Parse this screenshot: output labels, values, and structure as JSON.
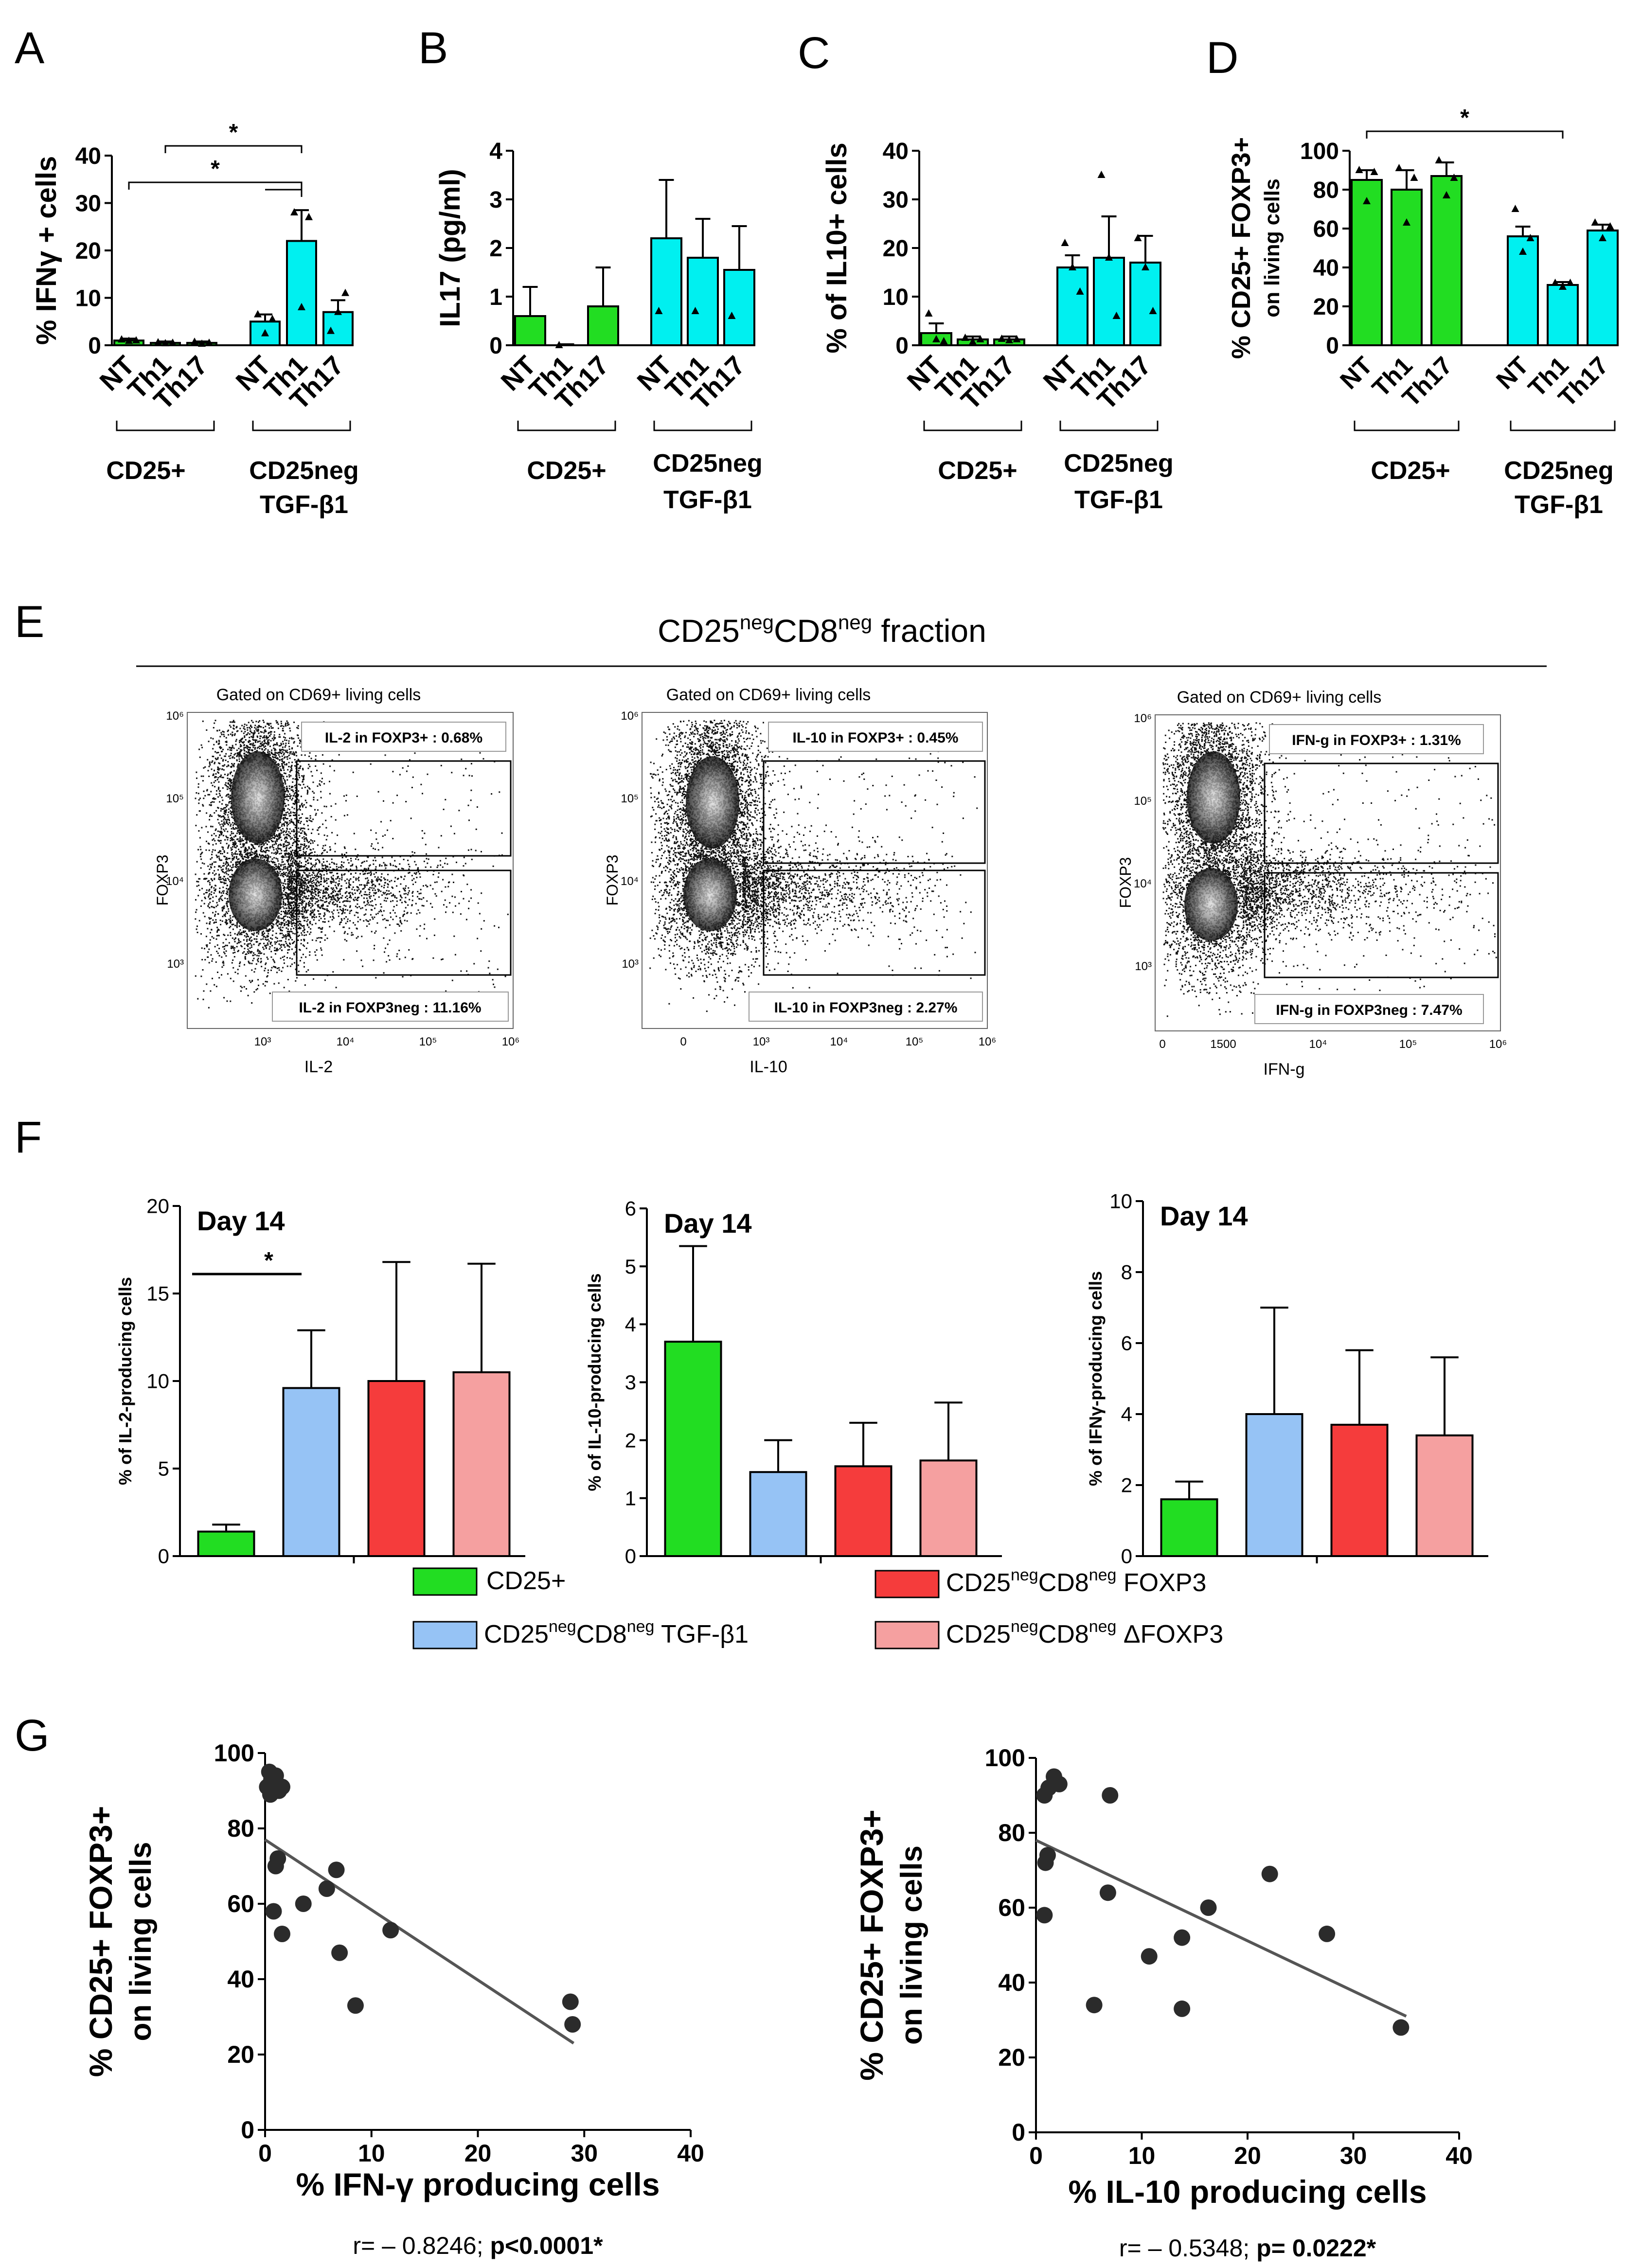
{
  "colors": {
    "green": "#22dd22",
    "cyan": "#00f0f0",
    "blue": "#96c3f5",
    "red": "#f53c3c",
    "pink": "#f5a0a0",
    "line": "#000000",
    "fit": "#555555",
    "dot": "#2b2b2b"
  },
  "panel_labels": [
    "A",
    "B",
    "C",
    "D",
    "E",
    "F",
    "G"
  ],
  "group_labels": {
    "cd25pos": "CD25+",
    "cd25neg": "CD25neg",
    "tgf": "TGF-β1"
  },
  "chart_data": [
    {
      "id": "A",
      "type": "bar",
      "ylabel": "% IFNγ + cells",
      "ylim": [
        0,
        40
      ],
      "yticks": [
        "0",
        "10",
        "20",
        "30",
        "40"
      ],
      "categories": [
        "NT",
        "Th1",
        "Th17",
        "NT",
        "Th1",
        "Th17"
      ],
      "values": [
        1,
        0.5,
        0.5,
        5,
        22,
        7
      ],
      "errors": [
        0.4,
        0.3,
        0.3,
        1.5,
        6.5,
        2.5
      ],
      "colors": [
        "green",
        "green",
        "green",
        "cyan",
        "cyan",
        "cyan"
      ],
      "points": [
        [
          1.2,
          0.9,
          1
        ],
        [
          0.6,
          0.4,
          0.5
        ],
        [
          0.7,
          0.3,
          0.5
        ],
        [
          6.5,
          2.5,
          5.5
        ],
        [
          28,
          8,
          27
        ],
        [
          3,
          7,
          11
        ]
      ],
      "significance": [
        {
          "from": 1,
          "to": 4,
          "label": "*"
        },
        {
          "from": 0,
          "to": 4,
          "label": "*"
        },
        {
          "from": 3,
          "to": 4,
          "label": ""
        }
      ]
    },
    {
      "id": "B",
      "type": "bar",
      "ylabel": "IL17 (pg/ml)",
      "ylim": [
        0,
        4
      ],
      "yticks": [
        "0",
        "1",
        "2",
        "3",
        "4"
      ],
      "categories": [
        "NT",
        "Th1",
        "Th17",
        "NT",
        "Th1",
        "Th17"
      ],
      "values": [
        0.6,
        0,
        0.8,
        2.2,
        1.8,
        1.55
      ],
      "errors": [
        0.6,
        0,
        0.8,
        1.2,
        0.8,
        0.9
      ],
      "colors": [
        "green",
        "green",
        "green",
        "cyan",
        "cyan",
        "cyan"
      ],
      "points": [
        [],
        [
          0
        ],
        [],
        [
          0.7
        ],
        [
          0.7
        ],
        [
          0.6
        ]
      ],
      "significance": []
    },
    {
      "id": "C",
      "type": "bar",
      "ylabel": "% of IL10+ cells",
      "ylim": [
        0,
        40
      ],
      "yticks": [
        "0",
        "10",
        "20",
        "30",
        "40"
      ],
      "categories": [
        "NT",
        "Th1",
        "Th17",
        "NT",
        "Th1",
        "Th17"
      ],
      "values": [
        2.5,
        1.2,
        1.2,
        16,
        18,
        17
      ],
      "errors": [
        2,
        0.6,
        0.6,
        2.5,
        8.5,
        5.5
      ],
      "colors": [
        "green",
        "green",
        "green",
        "cyan",
        "cyan",
        "cyan"
      ],
      "points": [
        [
          6.5,
          1.2,
          0.8
        ],
        [
          1.5,
          0.7,
          1.2
        ],
        [
          1.3,
          1,
          1.2
        ],
        [
          21,
          16,
          11
        ],
        [
          35,
          18,
          6
        ],
        [
          22,
          16,
          7
        ]
      ],
      "significance": []
    },
    {
      "id": "D",
      "type": "bar",
      "ylabel": "% CD25+ FOXP3+",
      "ylabel2": "on living cells",
      "ylim": [
        0,
        100
      ],
      "yticks": [
        "0",
        "20",
        "40",
        "60",
        "80",
        "100"
      ],
      "categories": [
        "NT",
        "Th1",
        "Th17",
        "NT",
        "Th1",
        "Th17"
      ],
      "values": [
        85,
        80,
        87,
        56,
        31,
        59
      ],
      "errors": [
        5,
        10,
        7,
        5,
        1.5,
        3
      ],
      "colors": [
        "green",
        "green",
        "green",
        "cyan",
        "cyan",
        "cyan"
      ],
      "points": [
        [
          90,
          74,
          89
        ],
        [
          91,
          63,
          86
        ],
        [
          95,
          77,
          86
        ],
        [
          70,
          48,
          55
        ],
        [
          32,
          30,
          32
        ],
        [
          63,
          55,
          61
        ]
      ],
      "significance": [
        {
          "from": 0,
          "to": 4,
          "label": "*"
        }
      ]
    },
    {
      "id": "F1",
      "type": "bar",
      "title": "Day 14",
      "ylabel": "% of IL-2-producing cells",
      "ylim": [
        0,
        20
      ],
      "yticks": [
        "0",
        "5",
        "10",
        "15",
        "20"
      ],
      "categories": [
        "CD25+",
        "CD25negCD8neg TGF-β1",
        "CD25negCD8neg FOXP3",
        "CD25negCD8neg ΔFOXP3"
      ],
      "values": [
        1.4,
        9.6,
        10,
        10.5
      ],
      "errors": [
        0.4,
        3.3,
        6.8,
        6.2
      ],
      "colors": [
        "green",
        "blue",
        "red",
        "pink"
      ],
      "significance": [
        {
          "from": 0,
          "to": 1,
          "label": "*"
        }
      ]
    },
    {
      "id": "F2",
      "type": "bar",
      "title": "Day 14",
      "ylabel": "% of IL-10-producing cells",
      "ylim": [
        0,
        6
      ],
      "yticks": [
        "0",
        "1",
        "2",
        "3",
        "4",
        "5",
        "6"
      ],
      "categories": [
        "CD25+",
        "CD25negCD8neg TGF-β1",
        "CD25negCD8neg FOXP3",
        "CD25negCD8neg ΔFOXP3"
      ],
      "values": [
        3.7,
        1.45,
        1.55,
        1.65
      ],
      "errors": [
        1.65,
        0.55,
        0.75,
        1
      ],
      "colors": [
        "green",
        "blue",
        "red",
        "pink"
      ],
      "significance": []
    },
    {
      "id": "F3",
      "type": "bar",
      "title": "Day 14",
      "ylabel": "% of IFNγ-producing cells",
      "ylim": [
        0,
        10
      ],
      "yticks": [
        "0",
        "2",
        "4",
        "6",
        "8",
        "10"
      ],
      "categories": [
        "CD25+",
        "CD25negCD8neg TGF-β1",
        "CD25negCD8neg FOXP3",
        "CD25negCD8neg ΔFOXP3"
      ],
      "values": [
        1.6,
        4,
        3.7,
        3.4
      ],
      "errors": [
        0.5,
        3,
        2.1,
        2.2
      ],
      "colors": [
        "green",
        "blue",
        "red",
        "pink"
      ],
      "significance": []
    },
    {
      "id": "G1",
      "type": "scatter",
      "xlabel": "% IFN-γ producing cells",
      "ylabel": "% CD25+ FOXP3+",
      "ylabel2": "on living cells",
      "xlim": [
        0,
        40
      ],
      "ylim": [
        0,
        100
      ],
      "xticks": [
        "0",
        "10",
        "20",
        "30",
        "40"
      ],
      "yticks": [
        "0",
        "20",
        "40",
        "60",
        "80",
        "100"
      ],
      "fit": {
        "x0": 0,
        "y0": 77,
        "x1": 29,
        "y1": 23
      },
      "stat_prefix": "r= – 0.8246; ",
      "stat_bold": "p<0.0001*",
      "points": [
        [
          0.4,
          95
        ],
        [
          0.6,
          93
        ],
        [
          1,
          94
        ],
        [
          0.2,
          91
        ],
        [
          0.5,
          89
        ],
        [
          1.3,
          90
        ],
        [
          1.6,
          91
        ],
        [
          0.8,
          58
        ],
        [
          1,
          70
        ],
        [
          1.2,
          72
        ],
        [
          1.6,
          52
        ],
        [
          3.6,
          60
        ],
        [
          5.8,
          64
        ],
        [
          6.7,
          69
        ],
        [
          7,
          47
        ],
        [
          8.5,
          33
        ],
        [
          11.8,
          53
        ],
        [
          28.7,
          34
        ],
        [
          28.9,
          28
        ]
      ]
    },
    {
      "id": "G2",
      "type": "scatter",
      "xlabel": "% IL-10 producing cells",
      "ylabel": "% CD25+ FOXP3+",
      "ylabel2": "on living cells",
      "xlim": [
        0,
        40
      ],
      "ylim": [
        0,
        100
      ],
      "xticks": [
        "0",
        "10",
        "20",
        "30",
        "40"
      ],
      "yticks": [
        "0",
        "20",
        "40",
        "60",
        "80",
        "100"
      ],
      "fit": {
        "x0": 0,
        "y0": 78,
        "x1": 35,
        "y1": 31
      },
      "stat_prefix": "r= – 0.5348; ",
      "stat_bold": "p= 0.0222*",
      "points": [
        [
          0.8,
          90
        ],
        [
          1.2,
          92
        ],
        [
          1.7,
          95
        ],
        [
          2.2,
          93
        ],
        [
          0.9,
          72
        ],
        [
          1.1,
          74
        ],
        [
          0.8,
          58
        ],
        [
          7,
          90
        ],
        [
          6.8,
          64
        ],
        [
          5.5,
          34
        ],
        [
          10.7,
          47
        ],
        [
          13.8,
          52
        ],
        [
          13.8,
          33
        ],
        [
          16.3,
          60
        ],
        [
          22.1,
          69
        ],
        [
          27.5,
          53
        ],
        [
          34.5,
          28
        ]
      ]
    }
  ],
  "flow": {
    "title_base1": "CD25",
    "title_sup1": "neg",
    "title_base2": "CD8",
    "title_sup2": "neg",
    "title_tail": " fraction",
    "gate_label": "Gated on CD69+ living cells",
    "ylabel": "FOXP3",
    "yticks": [
      "10³",
      "10⁴",
      "10⁵",
      "10⁶"
    ],
    "plots": [
      {
        "xlabel": "IL-2",
        "top_label": "IL-2 in FOXP3+ : 0.68%",
        "bottom_label": "IL-2 in FOXP3neg : 11.16%",
        "xticks": [
          "10³",
          "10⁴",
          "10⁵",
          "10⁶"
        ]
      },
      {
        "xlabel": "IL-10",
        "top_label": "IL-10 in FOXP3+ : 0.45%",
        "bottom_label": "IL-10 in FOXP3neg : 2.27%",
        "xticks": [
          "0",
          "10³",
          "10⁴",
          "10⁵",
          "10⁶"
        ]
      },
      {
        "xlabel": "IFN-g",
        "top_label": "IFN-g in FOXP3+ : 1.31%",
        "bottom_label": "IFN-g in FOXP3neg : 7.47%",
        "xticks": [
          "0",
          "1500",
          "10⁴",
          "10⁵",
          "10⁶"
        ]
      }
    ]
  },
  "legend": [
    {
      "color": "green",
      "text": "CD25+",
      "base1": "",
      "sup1": "",
      "base2": "",
      "sup2": "",
      "tail": ""
    },
    {
      "color": "red",
      "text": "",
      "base1": "CD25",
      "sup1": "neg",
      "base2": "CD8",
      "sup2": "neg",
      "tail": " FOXP3"
    },
    {
      "color": "blue",
      "text": "",
      "base1": "CD25",
      "sup1": "neg",
      "base2": "CD8",
      "sup2": "neg",
      "tail": " TGF-β1"
    },
    {
      "color": "pink",
      "text": "",
      "base1": "CD25",
      "sup1": "neg",
      "base2": "CD8",
      "sup2": "neg",
      "tail": " ΔFOXP3"
    }
  ]
}
